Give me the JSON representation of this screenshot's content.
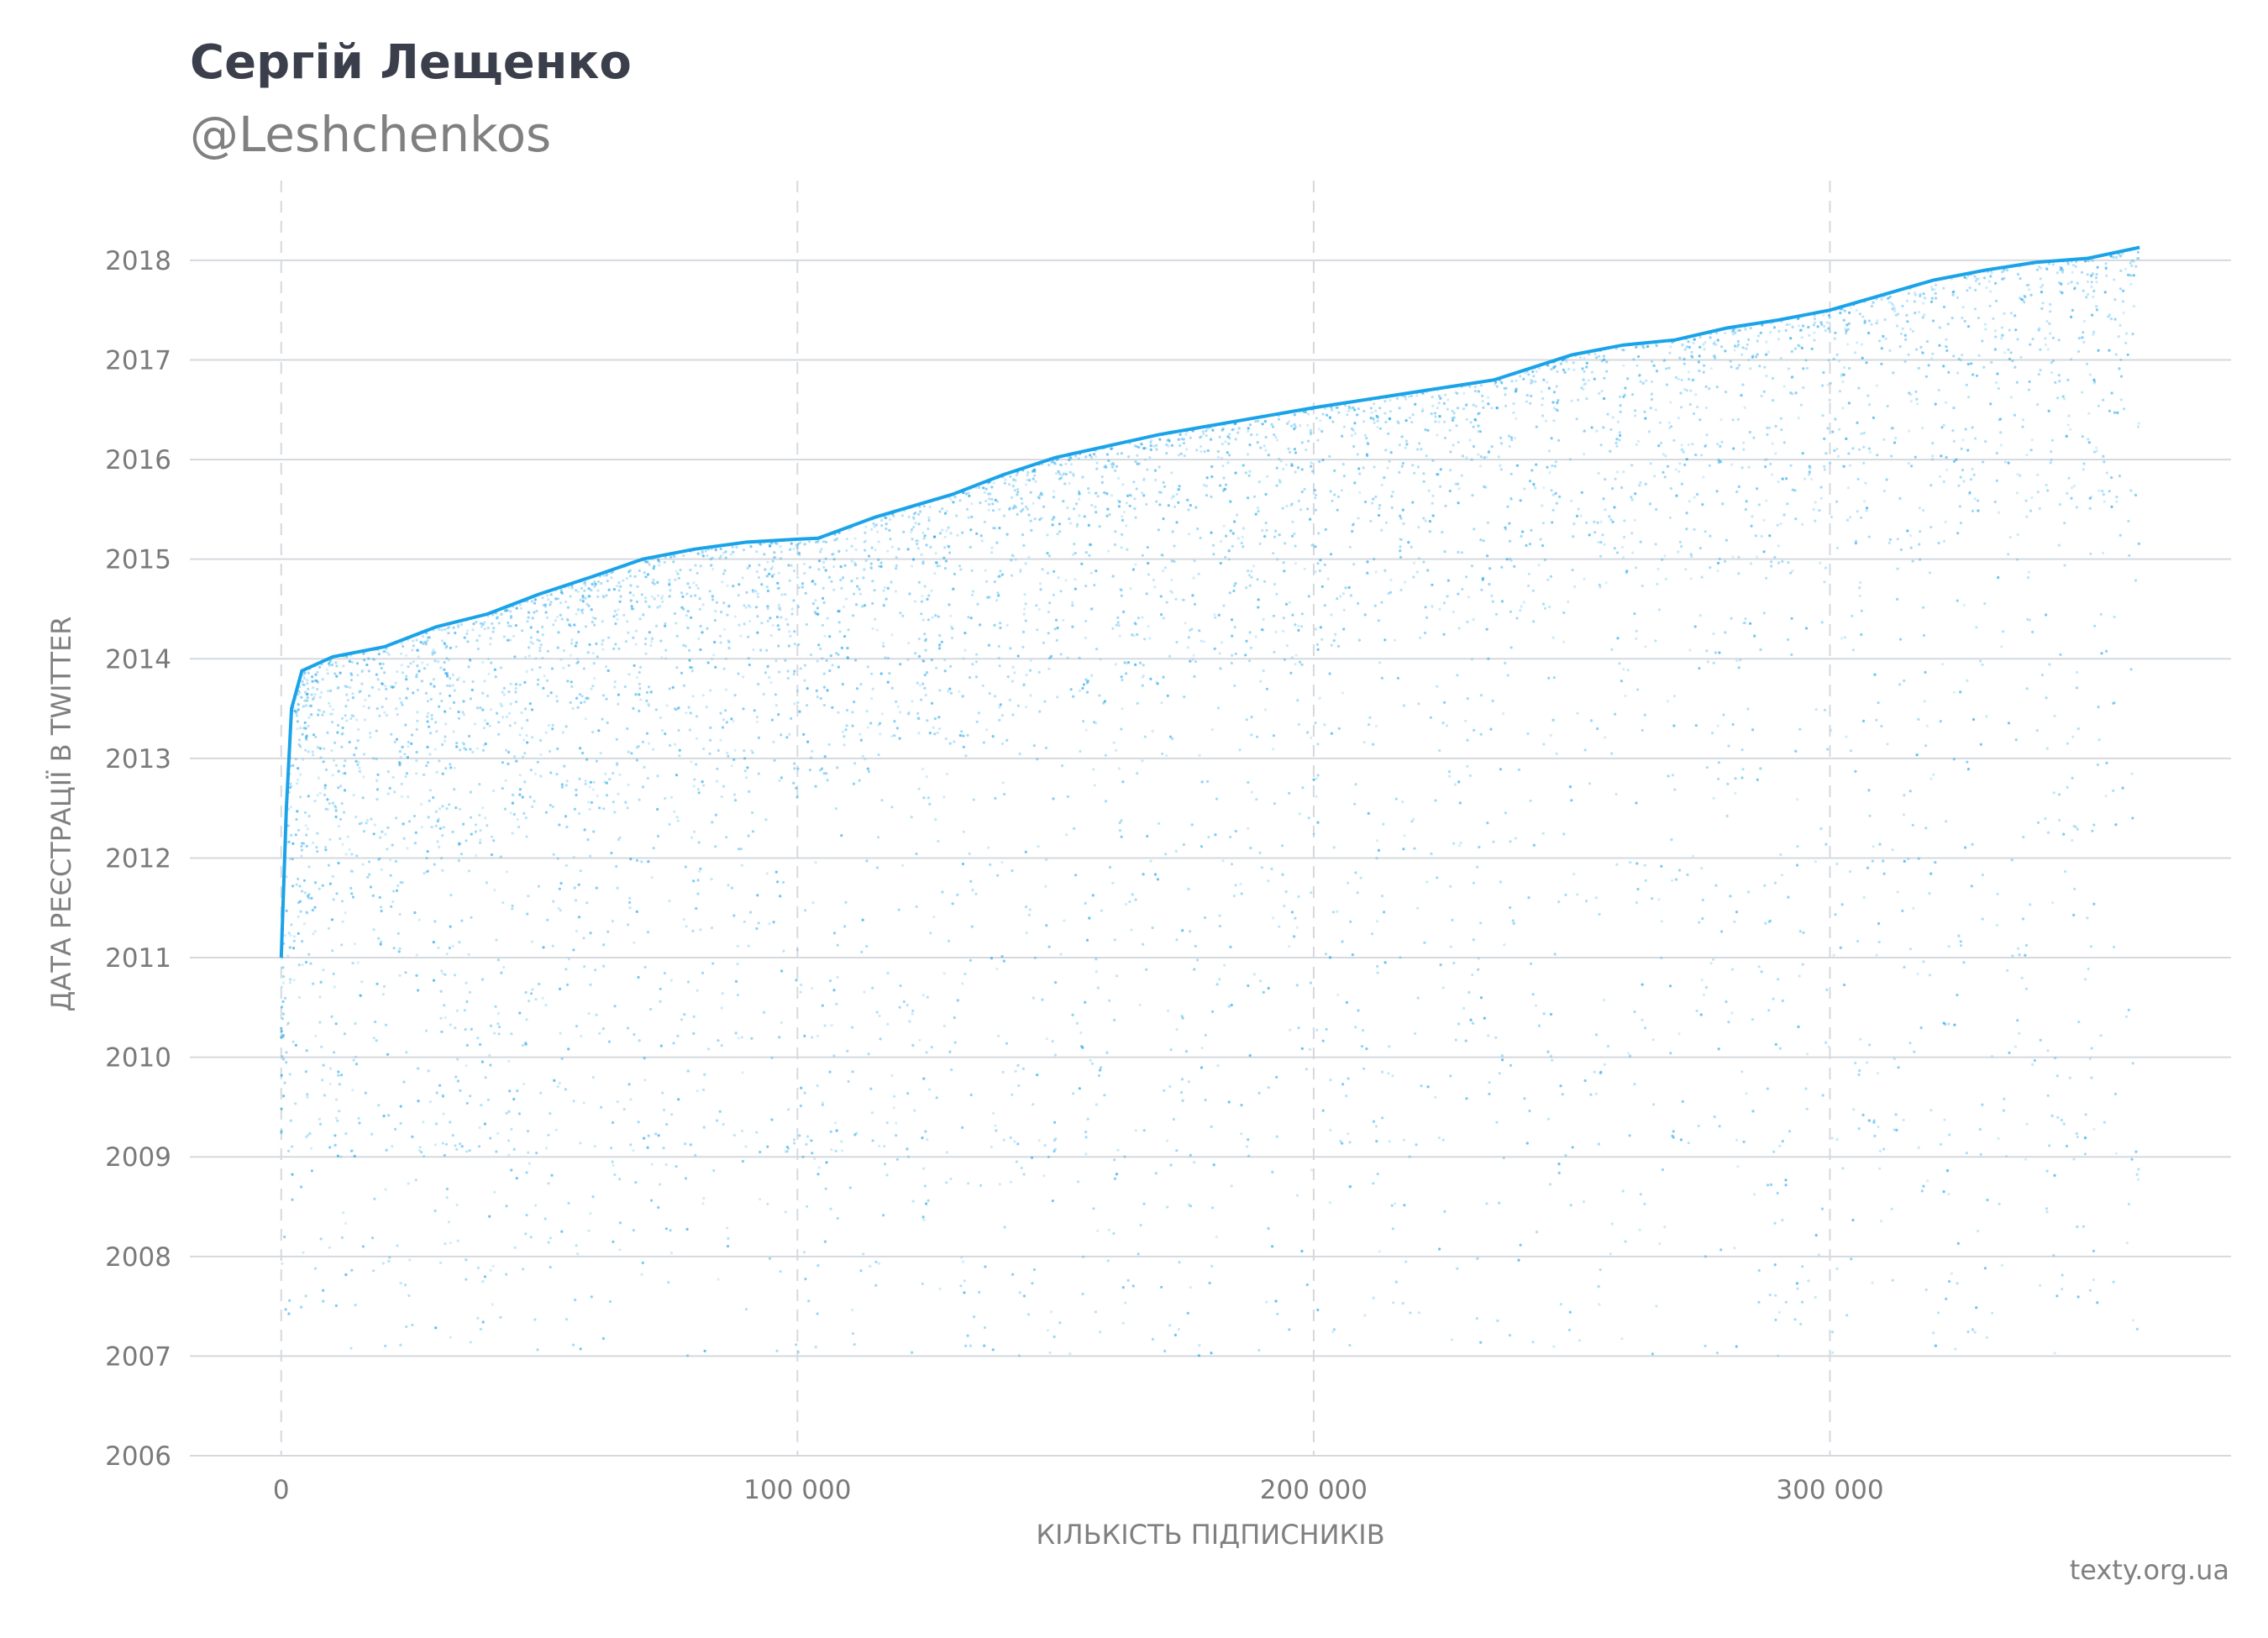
{
  "header": {
    "title": "Сергій Лещенко",
    "subtitle": "@Leshchenkos"
  },
  "footer": {
    "source": "texty.org.ua"
  },
  "colors": {
    "accent": "#1aa3e8",
    "grid": "#d5d9de",
    "text_dark": "#3a3f4b",
    "text_muted": "#808080"
  },
  "chart_data": {
    "type": "scatter",
    "title": "Сергій Лещенко",
    "subtitle": "@Leshchenkos",
    "xlabel": "КІЛЬКІСТЬ ПІДПИСНИКІВ",
    "ylabel": "ДАТА РЕЄСТРАЦІЇ В TWITTER",
    "xlim": [
      -17700,
      377700
    ],
    "ylim": [
      2006,
      2018.8
    ],
    "x_ticks": [
      0,
      100000,
      200000,
      300000
    ],
    "x_tick_labels": [
      "0",
      "100 000",
      "200 000",
      "300 000"
    ],
    "y_ticks": [
      2006,
      2007,
      2008,
      2009,
      2010,
      2011,
      2012,
      2013,
      2014,
      2015,
      2016,
      2017,
      2018
    ],
    "y_tick_labels": [
      "2006",
      "2007",
      "2008",
      "2009",
      "2010",
      "2011",
      "2012",
      "2013",
      "2014",
      "2015",
      "2016",
      "2017",
      "2018"
    ],
    "grid": "horizontal solid, vertical dashed",
    "legend": "none",
    "series": [
      {
        "description_of_data": "upper envelope: newest follower registration date by follower index",
        "color": "#1aa3e8",
        "x": [
          0,
          1000,
          2000,
          4000,
          10000,
          20000,
          30000,
          40000,
          50000,
          60000,
          70000,
          80000,
          90000,
          100000,
          104000,
          115000,
          130000,
          140000,
          150000,
          170000,
          200000,
          220000,
          235000,
          250000,
          260000,
          270000,
          280000,
          290000,
          300000,
          310000,
          320000,
          330000,
          340000,
          350000,
          360000
        ],
        "y": [
          2011.0,
          2012.5,
          2013.5,
          2013.88,
          2014.02,
          2014.12,
          2014.32,
          2014.45,
          2014.65,
          2014.82,
          2015.0,
          2015.1,
          2015.17,
          2015.2,
          2015.21,
          2015.42,
          2015.65,
          2015.85,
          2016.02,
          2016.25,
          2016.52,
          2016.68,
          2016.8,
          2017.05,
          2017.15,
          2017.2,
          2017.32,
          2017.4,
          2017.5,
          2017.65,
          2017.8,
          2017.9,
          2017.98,
          2018.02,
          2018.13
        ]
      }
    ]
  }
}
